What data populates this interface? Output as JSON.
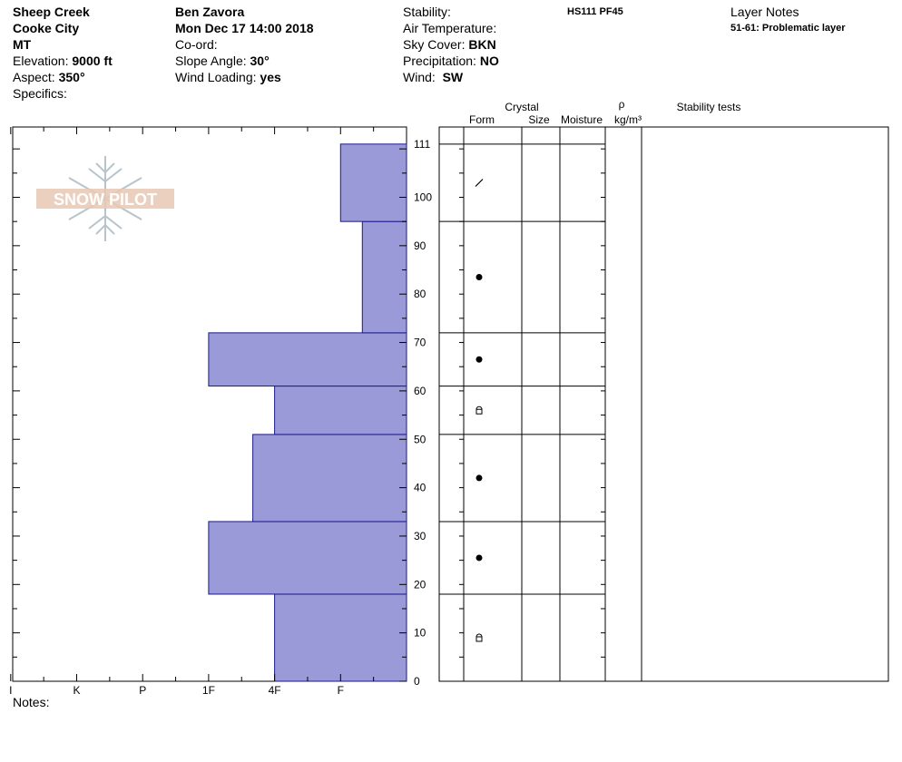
{
  "header": {
    "location": "Sheep Creek",
    "city": "Cooke City",
    "state": "MT",
    "elevation_label": "Elevation:",
    "elevation_value": "9000 ft",
    "aspect_label": "Aspect:",
    "aspect_value": "350°",
    "specifics_label": "Specifics:",
    "observer": "Ben Zavora",
    "datetime": "Mon Dec 17 14:00 2018",
    "coord_label": "Co-ord:",
    "slope_label": "Slope Angle:",
    "slope_value": "30°",
    "wind_loading_label": "Wind Loading:",
    "wind_loading_value": "yes",
    "stability_label": "Stability:",
    "air_temp_label": "Air Temperature:",
    "sky_label": "Sky Cover:",
    "sky_value": "BKN",
    "precip_label": "Precipitation:",
    "precip_value": "NO",
    "wind_label": "Wind:",
    "wind_value": "SW",
    "hs_pf": "HS111 PF45",
    "layer_notes_title": "Layer Notes",
    "layer_note": "51-61: Problematic layer"
  },
  "logo_text": "SNOW PILOT",
  "notes_label": "Notes:",
  "columns": {
    "crystal": "Crystal",
    "form": "Form",
    "size": "Size",
    "moisture": "Moisture",
    "rho": "ρ",
    "density_unit": "kg/m³",
    "stability_tests": "Stability tests"
  },
  "colors": {
    "hardness_fill": "#9a9ad8",
    "hardness_stroke": "#1a1a8a",
    "logo": "#e8c8b4",
    "snowflake": "#b8c4cc"
  },
  "chart_data": {
    "type": "bar",
    "title": "",
    "xlabel": "",
    "ylabel": "",
    "x_categories": [
      "I",
      "K",
      "P",
      "1F",
      "4F",
      "F"
    ],
    "y_ticks": [
      0,
      10,
      20,
      30,
      40,
      50,
      60,
      70,
      80,
      90,
      100,
      111
    ],
    "ylim": [
      0,
      111
    ],
    "layers": [
      {
        "bottom": 0,
        "top": 18,
        "hardness": "4F",
        "form": "facet-rounding"
      },
      {
        "bottom": 18,
        "top": 33,
        "hardness": "1F",
        "form": "round"
      },
      {
        "bottom": 33,
        "top": 51,
        "hardness": "4F-",
        "form": "round"
      },
      {
        "bottom": 51,
        "top": 61,
        "hardness": "4F",
        "form": "facet-rounding"
      },
      {
        "bottom": 61,
        "top": 72,
        "hardness": "1F",
        "form": "round"
      },
      {
        "bottom": 72,
        "top": 95,
        "hardness": "F+",
        "form": "round"
      },
      {
        "bottom": 95,
        "top": 111,
        "hardness": "F",
        "form": "decomposing"
      }
    ],
    "hardness_scale": {
      "I": 6,
      "K": 5,
      "P": 4,
      "1F": 3,
      "4F-": 2.33,
      "4F": 2,
      "F+": 0.67,
      "F": 1
    }
  }
}
